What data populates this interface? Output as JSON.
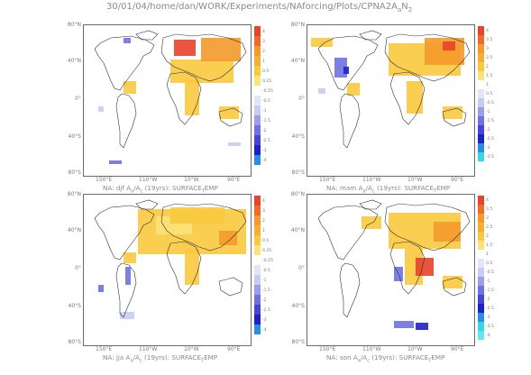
{
  "header": {
    "text_main": "30/01/04/home/dan/WORK/Experiments/NAforcing/Plots/CPNA2A",
    "sub1": "a",
    "mid": "N",
    "sub2": "2"
  },
  "lat_labels": [
    "80°N",
    "40°N",
    "0°",
    "40°S",
    "80°S"
  ],
  "lon_labels": [
    "150°E",
    "110°W",
    "10°W",
    "90°E"
  ],
  "panels": [
    {
      "id": "djf",
      "caption_pre": "NA: djf A",
      "sub1": "a",
      "mid": "/A",
      "sub2": "c",
      "caption_post": " (19yrs): SURFACE",
      "sub3": "T",
      "tail": "EMP",
      "scale": [
        "4",
        "3",
        "2",
        "1",
        "0.5",
        "0.25",
        "-0.25",
        "-0.5",
        "-1",
        "-1.5",
        "-2",
        "-2.5",
        "-3",
        "-4"
      ]
    },
    {
      "id": "mam",
      "caption_pre": "NA: mam A",
      "sub1": "a",
      "mid": "/A",
      "sub2": "c",
      "caption_post": " (19yrs): SURFACE",
      "sub3": "T",
      "tail": "EMP",
      "scale": [
        "4",
        "3.5",
        "3",
        "2.5",
        "2",
        "1.5",
        "1",
        "0.5",
        "-0.5",
        "-1",
        "-1.5",
        "-2",
        "-2.5",
        "-3",
        "-3.5"
      ]
    },
    {
      "id": "jja",
      "caption_pre": "NA: jja A",
      "sub1": "a",
      "mid": "/A",
      "sub2": "c",
      "caption_post": " (19yrs): SURFACE",
      "sub3": "T",
      "tail": "EMP",
      "scale": [
        "4",
        "3",
        "2",
        "1",
        "0.5",
        "0.25",
        "-0.25",
        "-0.5",
        "-1",
        "-1.5",
        "-2",
        "-2.5",
        "-3",
        "-4"
      ]
    },
    {
      "id": "son",
      "caption_pre": "NA: son A",
      "sub1": "a",
      "mid": "/A",
      "sub2": "c",
      "caption_post": " (19yrs): SURFACE",
      "sub3": "T",
      "tail": "EMP",
      "scale": [
        "4",
        "3.5",
        "3",
        "2.5",
        "2",
        "1.5",
        "1",
        "0.5",
        "-0.5",
        "-1",
        "-1.5",
        "-2",
        "-2.5",
        "-3",
        "-3.5",
        "-4"
      ]
    }
  ],
  "colors": {
    "warm_strong": "#e8432b",
    "warm_mid": "#f39a2a",
    "warm_light": "#f8c93e",
    "warm_pale": "#fbe27a",
    "cool_light": "#c8ccf2",
    "cool_mid": "#6f72e0",
    "cool_strong": "#2020c8",
    "cyan": "#38d6e6"
  }
}
